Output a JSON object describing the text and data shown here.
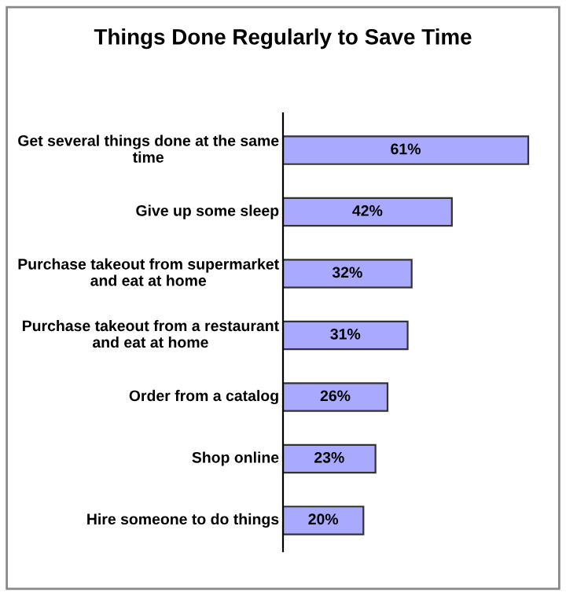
{
  "chart_data": {
    "type": "bar",
    "orientation": "horizontal",
    "title": "Things Done Regularly to Save Time",
    "categories": [
      "Get several things done at the same time",
      "Give up some sleep",
      "Purchase takeout from supermarket and eat at home",
      "Purchase takeout from a restaurant and eat at home",
      "Order from a catalog",
      "Shop online",
      "Hire someone to do things"
    ],
    "values": [
      61,
      42,
      32,
      31,
      26,
      23,
      20
    ],
    "value_labels": [
      "61%",
      "42%",
      "32%",
      "31%",
      "26%",
      "23%",
      "20%"
    ],
    "color": "#a9a9ff"
  }
}
